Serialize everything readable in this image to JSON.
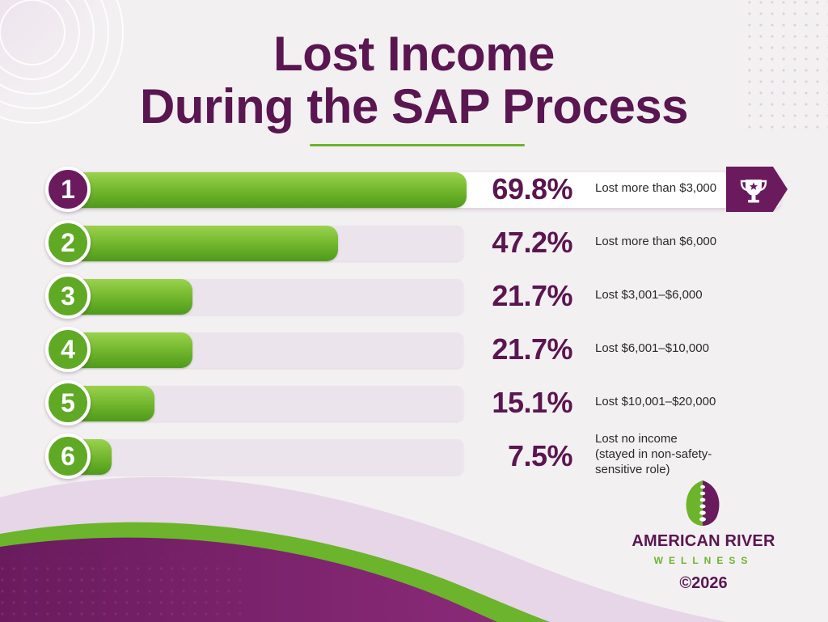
{
  "title": {
    "line1": "Lost Income",
    "line2": "During the SAP Process"
  },
  "colors": {
    "purple": "#5a1650",
    "green": "#6cb42c",
    "track": "#ebe4ec"
  },
  "chart_data": {
    "type": "bar",
    "orientation": "horizontal",
    "ranks": [
      "1",
      "2",
      "3",
      "4",
      "5",
      "6"
    ],
    "categories": [
      "Lost more than $3,000",
      "Lost more than $6,000",
      "Lost $3,001–$6,000",
      "Lost $6,001–$10,000",
      "Lost $10,001–$20,000",
      "Lost no income\n(stayed in non-safety-\nsensitive role)"
    ],
    "values": [
      69.8,
      47.2,
      21.7,
      21.7,
      15.1,
      7.5
    ],
    "value_labels": [
      "69.8%",
      "47.2%",
      "21.7%",
      "21.7%",
      "15.1%",
      "7.5%"
    ],
    "unit": "%",
    "xlim": [
      0,
      100
    ],
    "highlight": {
      "index": 0,
      "icon": "trophy-icon"
    }
  },
  "logo": {
    "icon": "leaf-spine-icon",
    "name": "AMERICAN RIVER",
    "sub": "WELLNESS"
  },
  "copyright": "©2026"
}
